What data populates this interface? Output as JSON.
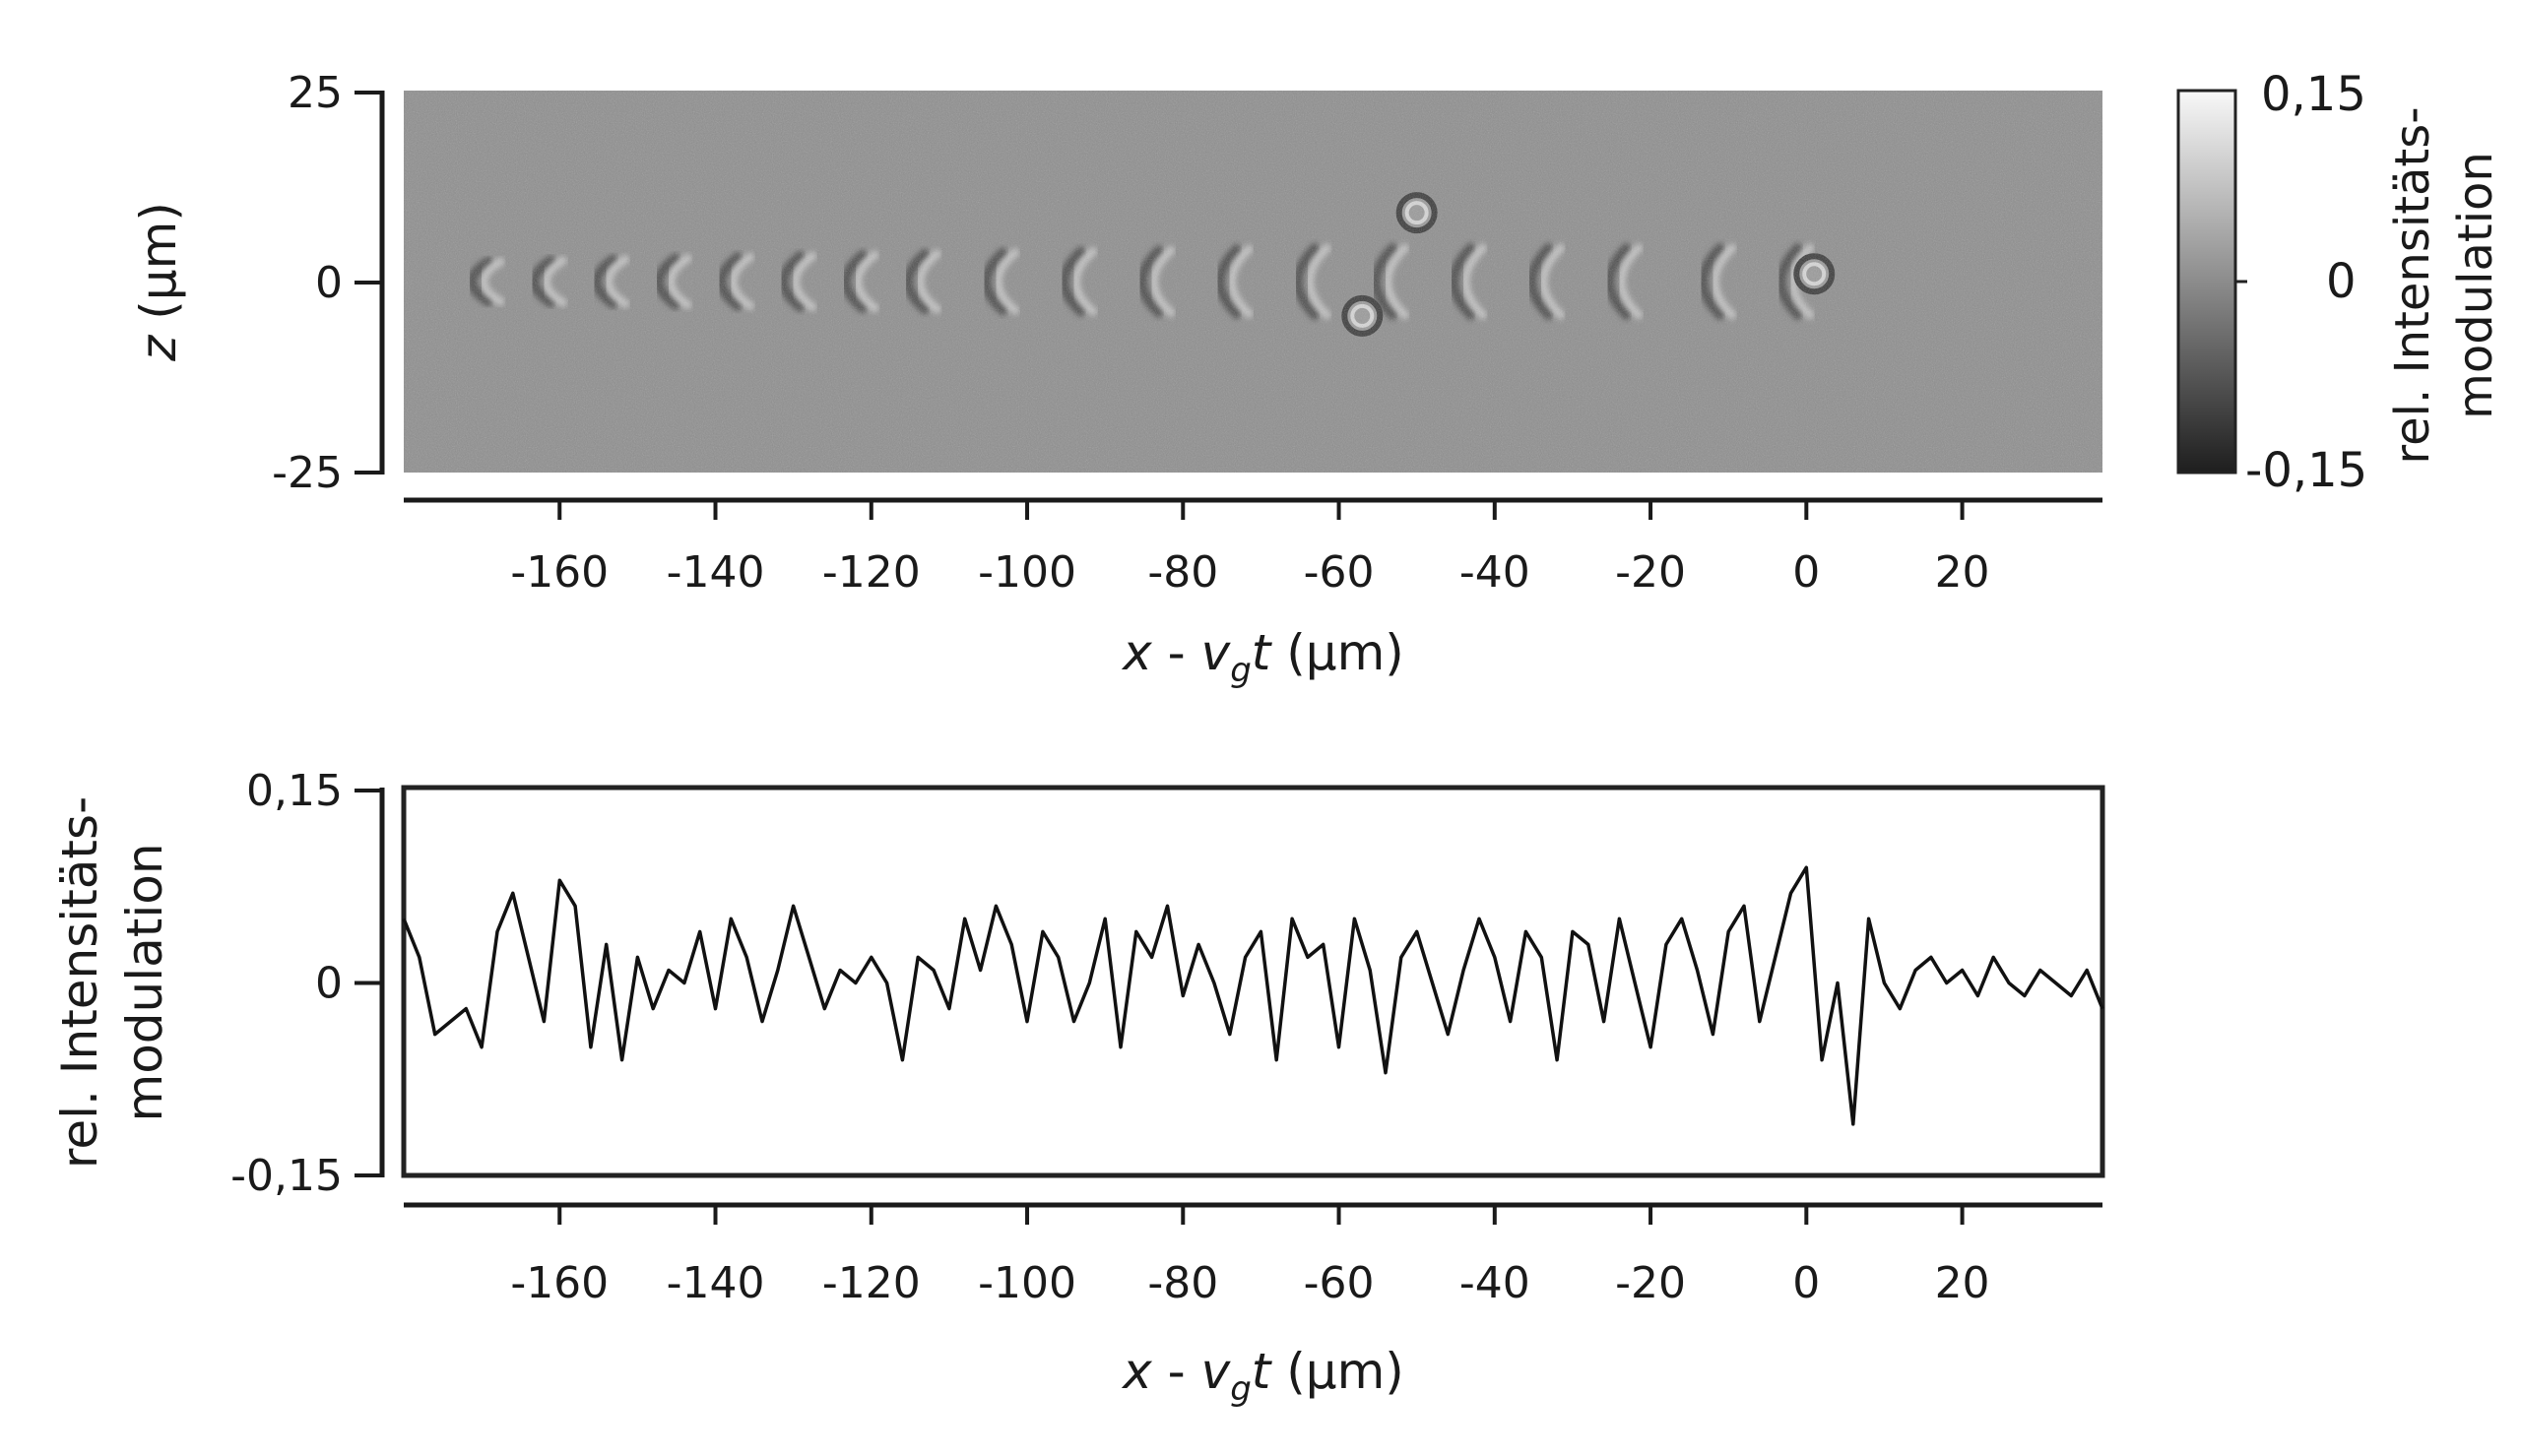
{
  "chart_data": [
    {
      "type": "heatmap",
      "x_axis": {
        "range": [
          -180,
          38
        ],
        "ticks": [
          -160,
          -140,
          -120,
          -100,
          -80,
          -60,
          -40,
          -20,
          0,
          20
        ],
        "tick_labels": [
          "-160",
          "-140",
          "-120",
          "-100",
          "-80",
          "-60",
          "-40",
          "-20",
          "0",
          "20"
        ],
        "label": {
          "x": "x",
          "sep": " - ",
          "v": "v",
          "sub": "g",
          "t": "t",
          "unit": " (µm)"
        }
      },
      "y_axis": {
        "range": [
          -25,
          25
        ],
        "ticks": [
          25,
          0,
          -25
        ],
        "tick_labels": [
          "25",
          "0",
          "-25"
        ],
        "label": {
          "var": "z",
          "unit": " (µm)"
        }
      },
      "colorbar": {
        "range": [
          -0.15,
          0.15
        ],
        "tick_labels": [
          "0,15",
          "0",
          "-0,15"
        ],
        "label_line1": "rel. Intensitäts-",
        "label_line2": "modulation",
        "colors": [
          "#1e1e1e",
          "#8c8c8c",
          "#f8f8f8"
        ]
      },
      "features": {
        "wave_fronts_x": [
          -172,
          -164,
          -156,
          -148,
          -140,
          -132,
          -124,
          -116,
          -106,
          -96,
          -86,
          -76,
          -66,
          -56,
          -46,
          -36,
          -26,
          -14,
          -4
        ],
        "bubbles": [
          {
            "x": -50,
            "z": 9
          },
          {
            "x": -57,
            "z": -4.5
          },
          {
            "x": 1,
            "z": 1
          }
        ]
      }
    },
    {
      "type": "line",
      "x_axis": {
        "range": [
          -180,
          38
        ],
        "ticks": [
          -160,
          -140,
          -120,
          -100,
          -80,
          -60,
          -40,
          -20,
          0,
          20
        ],
        "tick_labels": [
          "-160",
          "-140",
          "-120",
          "-100",
          "-80",
          "-60",
          "-40",
          "-20",
          "0",
          "20"
        ],
        "label": {
          "x": "x",
          "sep": " - ",
          "v": "v",
          "sub": "g",
          "t": "t",
          "unit": " (µm)"
        }
      },
      "y_axis": {
        "range": [
          -0.15,
          0.15
        ],
        "ticks": [
          0.15,
          0,
          -0.15
        ],
        "tick_labels": [
          "0,15",
          "0",
          "-0,15"
        ],
        "label_line1": "rel. Intensitäts-",
        "label_line2": "modulation"
      },
      "series": [
        {
          "x": [
            -180,
            -178,
            -176,
            -174,
            -172,
            -170,
            -168,
            -166,
            -164,
            -162,
            -160,
            -158,
            -156,
            -154,
            -152,
            -150,
            -148,
            -146,
            -144,
            -142,
            -140,
            -138,
            -136,
            -134,
            -132,
            -130,
            -128,
            -126,
            -124,
            -122,
            -120,
            -118,
            -116,
            -114,
            -112,
            -110,
            -108,
            -106,
            -104,
            -102,
            -100,
            -98,
            -96,
            -94,
            -92,
            -90,
            -88,
            -86,
            -84,
            -82,
            -80,
            -78,
            -76,
            -74,
            -72,
            -70,
            -68,
            -66,
            -64,
            -62,
            -60,
            -58,
            -56,
            -54,
            -52,
            -50,
            -48,
            -46,
            -44,
            -42,
            -40,
            -38,
            -36,
            -34,
            -32,
            -30,
            -28,
            -26,
            -24,
            -22,
            -20,
            -18,
            -16,
            -14,
            -12,
            -10,
            -8,
            -6,
            -4,
            -2,
            0,
            2,
            4,
            6,
            8,
            10,
            12,
            14,
            16,
            18,
            20,
            22,
            24,
            26,
            28,
            30,
            32,
            34,
            36,
            38
          ],
          "values": [
            0.05,
            0.02,
            -0.04,
            -0.03,
            -0.02,
            -0.05,
            0.04,
            0.07,
            0.02,
            -0.03,
            0.08,
            0.06,
            -0.05,
            0.03,
            -0.06,
            0.02,
            -0.02,
            0.01,
            0.0,
            0.04,
            -0.02,
            0.05,
            0.02,
            -0.03,
            0.01,
            0.06,
            0.02,
            -0.02,
            0.01,
            0.0,
            0.02,
            0.0,
            -0.06,
            0.02,
            0.01,
            -0.02,
            0.05,
            0.01,
            0.06,
            0.03,
            -0.03,
            0.04,
            0.02,
            -0.03,
            0.0,
            0.05,
            -0.05,
            0.04,
            0.02,
            0.06,
            -0.01,
            0.03,
            0.0,
            -0.04,
            0.02,
            0.04,
            -0.06,
            0.05,
            0.02,
            0.03,
            -0.05,
            0.05,
            0.01,
            -0.07,
            0.02,
            0.04,
            0.0,
            -0.04,
            0.01,
            0.05,
            0.02,
            -0.03,
            0.04,
            0.02,
            -0.06,
            0.04,
            0.03,
            -0.03,
            0.05,
            0.0,
            -0.05,
            0.03,
            0.05,
            0.01,
            -0.04,
            0.04,
            0.06,
            -0.03,
            0.02,
            0.07,
            0.09,
            -0.06,
            0.0,
            -0.11,
            0.05,
            0.0,
            -0.02,
            0.01,
            0.02,
            0.0,
            0.01,
            -0.01,
            0.02,
            0.0,
            -0.01,
            0.01,
            0.0,
            -0.01,
            0.01,
            -0.02
          ]
        }
      ]
    }
  ]
}
